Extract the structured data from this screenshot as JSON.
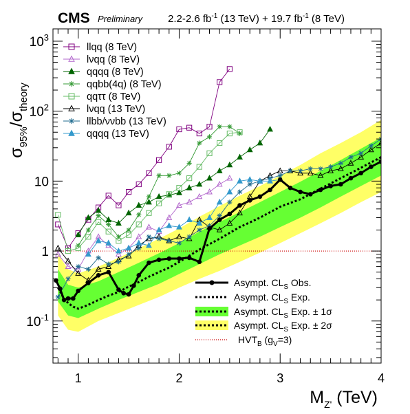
{
  "header": {
    "experiment": "CMS",
    "status": "Preliminary",
    "lumi_13_value": "2.2-2.6 fb",
    "lumi_13_sup": "-1",
    "lumi_13_energy": " (13 TeV) + 19.7 fb",
    "lumi_8_sup": "-1",
    "lumi_8_energy": " (8 TeV)"
  },
  "axes": {
    "x_main": "M",
    "x_sub": "Z'",
    "x_unit": " (TeV)",
    "y_sigma": "σ",
    "y_sub_1": "95%",
    "y_slash": "/σ",
    "y_sub_2": "theory"
  },
  "legend_top": [
    "llqq (8 TeV)",
    "lνqq (8 TeV)",
    "qqqq (8 TeV)",
    "qqbb(4q) (8 TeV)",
    "qqττ (8 TeV)",
    "lνqq (13 TeV)",
    "llbb/ννbb (13 TeV)",
    "qqqq (13 TeV)"
  ],
  "legend_bottom": {
    "obs": "Asympt. CL",
    "obs_sub": "S",
    "obs_tail": " Obs.",
    "exp": "Asympt. CL",
    "exp_sub": "S",
    "exp_tail": " Exp.",
    "s1": "Asympt. CL",
    "s1_sub": "S",
    "s1_tail": " Exp. ± 1σ",
    "s2": "Asympt. CL",
    "s2_sub": "S",
    "s2_tail": " Exp. ± 2σ",
    "hvt": "HVT",
    "hvt_sub": "B",
    "hvt_tail": " (g",
    "hvt_sub2": "V",
    "hvt_end": "=3)"
  },
  "colors": {
    "band2": "#ffff66",
    "band1": "#66ff33",
    "llqq8": "#800080",
    "lvqq8": "#b266cc",
    "qqqq8": "#006400",
    "qqbb8": "#339933",
    "qqtt8": "#66bb66",
    "lvqq13": "#000000",
    "llbb13": "#1f6b8f",
    "qqqq13": "#3399cc",
    "hvt": "#cc0000"
  },
  "chart_data": {
    "type": "line",
    "xlabel": "M_Z' (TeV)",
    "ylabel": "σ95%/σtheory",
    "xlim": [
      0.75,
      4.0
    ],
    "ylim": [
      0.025,
      1500
    ],
    "yscale": "log",
    "x_ticks": [
      "1",
      "2",
      "3",
      "4"
    ],
    "y_ticks": [
      {
        "value": 0.1,
        "label": "10",
        "sup": "-1"
      },
      {
        "value": 1,
        "label": "1",
        "sup": ""
      },
      {
        "value": 10,
        "label": "10",
        "sup": ""
      },
      {
        "value": 100,
        "label": "10",
        "sup": "2"
      },
      {
        "value": 1000,
        "label": "10",
        "sup": "3"
      }
    ],
    "band_2sigma": {
      "x": [
        0.8,
        0.9,
        1.0,
        1.2,
        1.4,
        1.6,
        1.8,
        2.0,
        2.2,
        2.4,
        2.6,
        2.8,
        3.0,
        3.2,
        3.4,
        3.6,
        3.8,
        4.0
      ],
      "lo": [
        0.12,
        0.075,
        0.07,
        0.1,
        0.13,
        0.17,
        0.22,
        0.3,
        0.4,
        0.52,
        0.7,
        0.95,
        1.3,
        1.8,
        2.5,
        3.5,
        5.0,
        7.0
      ],
      "hi": [
        0.9,
        0.55,
        0.48,
        0.6,
        0.8,
        1.1,
        1.5,
        2.1,
        3.1,
        4.4,
        6.2,
        8.5,
        12,
        17,
        25,
        35,
        50,
        75
      ]
    },
    "band_1sigma": {
      "x": [
        0.8,
        0.9,
        1.0,
        1.2,
        1.4,
        1.6,
        1.8,
        2.0,
        2.2,
        2.4,
        2.6,
        2.8,
        3.0,
        3.2,
        3.4,
        3.6,
        3.8,
        4.0
      ],
      "lo": [
        0.19,
        0.12,
        0.11,
        0.15,
        0.2,
        0.26,
        0.34,
        0.47,
        0.65,
        0.9,
        1.2,
        1.6,
        2.2,
        3.0,
        4.2,
        6.0,
        8.5,
        12
      ],
      "hi": [
        0.55,
        0.33,
        0.3,
        0.37,
        0.5,
        0.68,
        0.93,
        1.3,
        1.9,
        2.6,
        3.6,
        5.0,
        7.0,
        9.8,
        14,
        20,
        29,
        42
      ]
    },
    "expected": {
      "x": [
        0.8,
        0.85,
        0.9,
        0.95,
        1.0,
        1.1,
        1.2,
        1.3,
        1.4,
        1.5,
        1.6,
        1.7,
        1.8,
        1.9,
        2.0,
        2.2,
        2.4,
        2.6,
        2.8,
        3.0,
        3.2,
        3.4,
        3.6,
        3.8,
        4.0
      ],
      "y": [
        0.3,
        0.22,
        0.18,
        0.16,
        0.15,
        0.17,
        0.2,
        0.23,
        0.26,
        0.31,
        0.36,
        0.43,
        0.5,
        0.58,
        0.7,
        1.05,
        1.5,
        2.2,
        3.0,
        4.3,
        5.5,
        7.8,
        11,
        15.5,
        22
      ]
    },
    "observed": {
      "x": [
        0.78,
        0.82,
        0.86,
        0.9,
        0.95,
        1.0,
        1.1,
        1.2,
        1.3,
        1.4,
        1.45,
        1.5,
        1.55,
        1.6,
        1.7,
        1.8,
        1.9,
        2.0,
        2.1,
        2.2,
        2.3,
        2.4,
        2.5,
        2.6,
        2.7,
        2.8,
        2.9,
        3.0,
        3.1,
        3.2,
        3.3,
        3.4,
        3.5,
        3.6,
        3.7,
        3.8,
        3.9,
        4.0
      ],
      "y": [
        0.38,
        0.29,
        0.2,
        0.21,
        0.21,
        0.27,
        0.35,
        0.45,
        0.5,
        0.28,
        0.25,
        0.24,
        0.32,
        0.45,
        0.68,
        0.75,
        0.78,
        0.78,
        0.8,
        0.7,
        2.1,
        2.8,
        3.4,
        4.5,
        5.3,
        6.0,
        7.5,
        10.5,
        8.0,
        7.0,
        6.5,
        7.5,
        8.5,
        9.0,
        11,
        13,
        16,
        19
      ]
    },
    "hvt_line": 1,
    "series": [
      {
        "id": "llqq8",
        "marker": "square-open",
        "x": [
          0.8,
          0.9,
          1.0,
          1.1,
          1.2,
          1.3,
          1.4,
          1.5,
          1.6,
          1.7,
          1.8,
          1.9,
          2.0,
          2.1,
          2.2,
          2.3,
          2.4,
          2.5
        ],
        "y": [
          2.4,
          1.1,
          1.8,
          2.8,
          4.2,
          6.2,
          4.5,
          7.0,
          9.0,
          13,
          20,
          31,
          55,
          58,
          48,
          60,
          260,
          400
        ]
      },
      {
        "id": "lvqq8",
        "marker": "triangle-open",
        "x": [
          0.8,
          0.9,
          1.0,
          1.1,
          1.2,
          1.3,
          1.4,
          1.5,
          1.6,
          1.7,
          1.8,
          1.9,
          2.0,
          2.1,
          2.2,
          2.3,
          2.4,
          2.5
        ],
        "y": [
          0.9,
          0.6,
          0.55,
          1.0,
          1.6,
          1.2,
          0.9,
          1.1,
          1.6,
          2.2,
          1.9,
          3.0,
          4.5,
          5.0,
          6.0,
          7.0,
          9.0,
          11
        ]
      },
      {
        "id": "qqqq8",
        "marker": "triangle-full",
        "x": [
          1.0,
          1.1,
          1.2,
          1.3,
          1.4,
          1.5,
          1.6,
          1.7,
          1.8,
          1.9,
          2.0,
          2.1,
          2.2,
          2.3,
          2.4,
          2.5,
          2.6,
          2.7,
          2.8,
          2.9
        ],
        "y": [
          1.7,
          3.0,
          3.8,
          2.8,
          2.5,
          3.5,
          4.5,
          5.0,
          6.0,
          6.3,
          6.8,
          8.0,
          9.0,
          11,
          14,
          17,
          22,
          28,
          35,
          55
        ]
      },
      {
        "id": "qqbb8",
        "marker": "star",
        "x": [
          1.0,
          1.1,
          1.2,
          1.3,
          1.4,
          1.5,
          1.6,
          1.7,
          1.8,
          1.9,
          2.0,
          2.1,
          2.2,
          2.3,
          2.4,
          2.5,
          2.6
        ],
        "y": [
          1.2,
          2.0,
          3.2,
          2.4,
          1.6,
          2.0,
          3.3,
          6.0,
          12,
          12,
          13,
          18,
          35,
          43,
          60,
          60,
          48
        ]
      },
      {
        "id": "qqtt8",
        "marker": "square-open",
        "x": [
          0.8,
          0.9,
          1.0,
          1.1,
          1.2,
          1.3,
          1.4,
          1.5,
          1.6,
          1.7,
          1.8,
          1.9,
          2.0,
          2.1,
          2.2,
          2.3,
          2.4,
          2.5,
          2.6
        ],
        "y": [
          3.3,
          1.0,
          1.1,
          1.6,
          2.6,
          1.9,
          1.4,
          1.7,
          2.4,
          3.5,
          4.8,
          6.5,
          8.0,
          11,
          16,
          25,
          35,
          48,
          50
        ]
      },
      {
        "id": "lvqq13",
        "marker": "triangle-open",
        "x": [
          0.8,
          0.9,
          1.0,
          1.1,
          1.2,
          1.3,
          1.4,
          1.5,
          1.6,
          1.7,
          1.8,
          1.9,
          2.0,
          2.1,
          2.2,
          2.3,
          2.4,
          2.5,
          2.6,
          2.7,
          2.8,
          2.9,
          3.0,
          3.1,
          3.2,
          3.3,
          3.4,
          3.5,
          3.6,
          3.7,
          3.8,
          3.9,
          4.0
        ],
        "y": [
          1.1,
          0.72,
          0.48,
          0.38,
          0.55,
          0.6,
          0.75,
          0.85,
          1.2,
          1.5,
          1.6,
          1.4,
          1.6,
          1.5,
          2.8,
          2.2,
          2.0,
          2.5,
          3.5,
          6.0,
          10,
          12,
          14,
          14,
          13,
          13,
          12,
          14,
          15,
          18,
          22,
          28,
          35
        ]
      },
      {
        "id": "llbb13",
        "marker": "star",
        "x": [
          0.8,
          0.9,
          1.0,
          1.1,
          1.2,
          1.3,
          1.4,
          1.5,
          1.6,
          1.7,
          1.8,
          1.9,
          2.0,
          2.1,
          2.2,
          2.3,
          2.4,
          2.5,
          2.6,
          2.7,
          2.8,
          2.9,
          3.0,
          3.1,
          3.2,
          3.3,
          3.4,
          3.5,
          3.6,
          3.7,
          3.8,
          3.9,
          4.0
        ],
        "y": [
          0.22,
          0.4,
          0.6,
          0.55,
          0.8,
          0.65,
          0.7,
          0.9,
          1.1,
          1.6,
          1.5,
          1.4,
          1.3,
          1.6,
          2.0,
          2.3,
          3.2,
          5.0,
          7.0,
          9.0,
          10,
          11,
          12,
          14,
          14,
          15,
          15,
          16,
          18,
          22,
          25,
          32,
          40
        ]
      },
      {
        "id": "qqqq13",
        "marker": "triangle-full",
        "x": [
          1.1,
          1.2,
          1.3,
          1.4,
          1.5,
          1.6,
          1.7,
          1.8,
          1.9,
          2.0,
          2.1,
          2.2,
          2.3,
          2.4,
          2.5,
          2.6,
          2.7,
          2.8,
          2.9,
          3.0
        ],
        "y": [
          0.9,
          1.4,
          1.3,
          1.0,
          1.1,
          1.3,
          1.2,
          2.0,
          2.3,
          2.2,
          2.8,
          2.5,
          3.0,
          5.0,
          7.0,
          10,
          10.5,
          10,
          10,
          10.5
        ]
      }
    ]
  }
}
